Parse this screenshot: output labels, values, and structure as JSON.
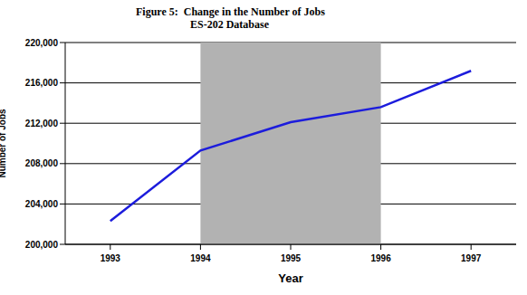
{
  "chart_data": {
    "type": "line",
    "title": "Figure 5:  Change in the Number of Jobs",
    "subtitle": "ES-202 Database",
    "x_label": "Year",
    "y_label": "Number of Jobs",
    "x": [
      1993,
      1994,
      1995,
      1996,
      1997
    ],
    "series": [
      {
        "name": "Number of Jobs",
        "color": "#1c1cdc",
        "values": [
          202300,
          209300,
          212100,
          213600,
          217200
        ]
      }
    ],
    "xlim": [
      1992.5,
      1997.5
    ],
    "xticks": [
      1993,
      1994,
      1995,
      1996,
      1997
    ],
    "ylim": [
      200000,
      220000
    ],
    "yticks": [
      {
        "value": 200000,
        "label": "200,000"
      },
      {
        "value": 204000,
        "label": "204,000"
      },
      {
        "value": 208000,
        "label": "208,000"
      },
      {
        "value": 212000,
        "label": "212,000"
      },
      {
        "value": 216000,
        "label": "216,000"
      },
      {
        "value": 220000,
        "label": "220,000"
      }
    ],
    "shaded_range": {
      "x": [
        1994,
        1996
      ],
      "color": "#b2b2b2"
    },
    "grid": true
  }
}
